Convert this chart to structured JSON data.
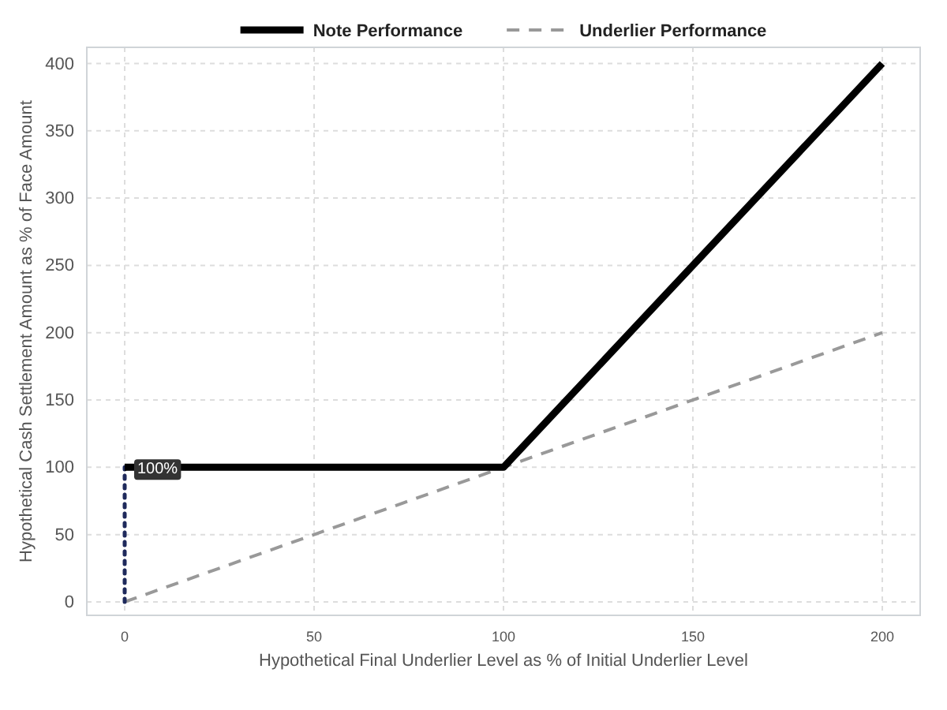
{
  "chart_data": {
    "type": "line",
    "xlabel": "Hypothetical Final Underlier Level as % of Initial Underlier Level",
    "ylabel": "Hypothetical Cash Settlement Amount as % of Face Amount",
    "xlim": [
      -10,
      210
    ],
    "ylim": [
      -10,
      412
    ],
    "xticks": [
      0,
      50,
      100,
      150,
      200
    ],
    "yticks": [
      0,
      50,
      100,
      150,
      200,
      250,
      300,
      350,
      400
    ],
    "grid": true,
    "legend": "top",
    "series": [
      {
        "name": "Note Performance",
        "color": "#000000",
        "x": [
          0,
          100,
          200
        ],
        "values": [
          100,
          100,
          400
        ],
        "line_style": "solid"
      },
      {
        "name": "Underlier Performance",
        "color": "#999999",
        "x": [
          0,
          200
        ],
        "values": [
          0,
          200
        ],
        "line_style": "dashed"
      },
      {
        "color": "#1f2a5c",
        "x": [
          0,
          0
        ],
        "values": [
          0,
          100
        ],
        "line_style": "dotted"
      }
    ],
    "annotations": [
      {
        "text": "100%",
        "x": 0,
        "y": 100
      }
    ]
  }
}
